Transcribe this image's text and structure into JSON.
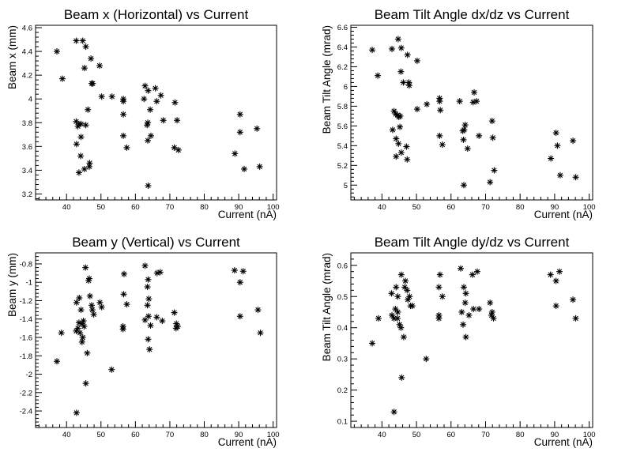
{
  "chart_data": [
    {
      "type": "scatter",
      "title": "Beam x (Horizontal) vs Current",
      "xlabel": "Current (nA)",
      "ylabel": "Beam x (mm)",
      "xlim": [
        31,
        101
      ],
      "ylim": [
        3.15,
        4.62
      ],
      "xticks": [
        40,
        50,
        60,
        70,
        80,
        90,
        100
      ],
      "yticks": [
        3.2,
        3.4,
        3.6,
        3.8,
        4,
        4.2,
        4.4,
        4.6
      ],
      "ytick_labels": [
        "3.2",
        "3.4",
        "3.6",
        "3.8",
        "4",
        "4.2",
        "4.4",
        "4.6"
      ],
      "marker": "asterisk",
      "grid": false,
      "points": [
        [
          37.2,
          4.4
        ],
        [
          38.8,
          4.17
        ],
        [
          42.8,
          4.49
        ],
        [
          44.7,
          4.49
        ],
        [
          45.6,
          4.44
        ],
        [
          45.2,
          4.26
        ],
        [
          47.1,
          4.34
        ],
        [
          47.6,
          4.13
        ],
        [
          47.3,
          4.13
        ],
        [
          49.6,
          4.28
        ],
        [
          50.2,
          4.02
        ],
        [
          53.2,
          4.02
        ],
        [
          46.2,
          3.91
        ],
        [
          42.8,
          3.81
        ],
        [
          43.3,
          3.77
        ],
        [
          43.6,
          3.79
        ],
        [
          44.2,
          3.79
        ],
        [
          45.6,
          3.78
        ],
        [
          44.2,
          3.68
        ],
        [
          42.9,
          3.62
        ],
        [
          44.1,
          3.52
        ],
        [
          43.6,
          3.38
        ],
        [
          45.2,
          3.41
        ],
        [
          46.7,
          3.46
        ],
        [
          46.6,
          3.43
        ],
        [
          56.5,
          4.0
        ],
        [
          56.5,
          3.98
        ],
        [
          56.5,
          3.87
        ],
        [
          56.5,
          3.69
        ],
        [
          57.5,
          3.59
        ],
        [
          62.8,
          4.11
        ],
        [
          63.7,
          4.07
        ],
        [
          62.5,
          4.0
        ],
        [
          64.3,
          3.91
        ],
        [
          63.6,
          3.8
        ],
        [
          63.4,
          3.78
        ],
        [
          65.8,
          4.09
        ],
        [
          66.2,
          3.98
        ],
        [
          67.4,
          4.03
        ],
        [
          68.1,
          3.82
        ],
        [
          64.5,
          3.69
        ],
        [
          63.6,
          3.65
        ],
        [
          63.7,
          3.27
        ],
        [
          71.5,
          3.97
        ],
        [
          72.1,
          3.82
        ],
        [
          71.3,
          3.59
        ],
        [
          72.5,
          3.57
        ],
        [
          88.9,
          3.54
        ],
        [
          90.4,
          3.87
        ],
        [
          90.4,
          3.72
        ],
        [
          91.6,
          3.41
        ],
        [
          95.3,
          3.75
        ],
        [
          96.1,
          3.43
        ]
      ]
    },
    {
      "type": "scatter",
      "title": "Beam Tilt Angle dx/dz vs Current",
      "xlabel": "Current (nA)",
      "ylabel": "Beam Tilt Angle (mrad)",
      "xlim": [
        31,
        101
      ],
      "ylim": [
        4.85,
        6.62
      ],
      "xticks": [
        40,
        50,
        60,
        70,
        80,
        90,
        100
      ],
      "yticks": [
        5,
        5.2,
        5.4,
        5.6,
        5.8,
        6,
        6.2,
        6.4,
        6.6
      ],
      "ytick_labels": [
        "5",
        "5.2",
        "5.4",
        "5.6",
        "5.8",
        "6",
        "6.2",
        "6.4",
        "6.6"
      ],
      "marker": "asterisk",
      "grid": false,
      "points": [
        [
          37.2,
          6.37
        ],
        [
          38.8,
          6.11
        ],
        [
          42.9,
          6.38
        ],
        [
          44.7,
          6.48
        ],
        [
          45.6,
          6.39
        ],
        [
          47.4,
          6.32
        ],
        [
          50.2,
          6.26
        ],
        [
          46.2,
          6.04
        ],
        [
          47.8,
          6.04
        ],
        [
          47.9,
          6.01
        ],
        [
          45.5,
          6.15
        ],
        [
          43.5,
          5.75
        ],
        [
          44.0,
          5.72
        ],
        [
          44.5,
          5.71
        ],
        [
          44.9,
          5.69
        ],
        [
          45.3,
          5.7
        ],
        [
          43.1,
          5.56
        ],
        [
          45.2,
          5.59
        ],
        [
          44.1,
          5.47
        ],
        [
          44.8,
          5.42
        ],
        [
          47.1,
          5.39
        ],
        [
          45.6,
          5.33
        ],
        [
          44.1,
          5.29
        ],
        [
          47.3,
          5.26
        ],
        [
          50.2,
          5.77
        ],
        [
          53.0,
          5.82
        ],
        [
          56.7,
          5.88
        ],
        [
          56.7,
          5.85
        ],
        [
          56.9,
          5.76
        ],
        [
          56.7,
          5.5
        ],
        [
          57.5,
          5.41
        ],
        [
          62.5,
          5.85
        ],
        [
          66.7,
          5.94
        ],
        [
          66.4,
          5.84
        ],
        [
          67.4,
          5.85
        ],
        [
          63.4,
          5.55
        ],
        [
          63.8,
          5.56
        ],
        [
          64.1,
          5.61
        ],
        [
          63.6,
          5.46
        ],
        [
          64.8,
          5.37
        ],
        [
          68.1,
          5.5
        ],
        [
          63.7,
          5.0
        ],
        [
          71.9,
          5.65
        ],
        [
          72.1,
          5.48
        ],
        [
          72.5,
          5.15
        ],
        [
          71.3,
          5.03
        ],
        [
          90.4,
          5.53
        ],
        [
          90.8,
          5.4
        ],
        [
          88.9,
          5.27
        ],
        [
          91.6,
          5.1
        ],
        [
          95.3,
          5.45
        ],
        [
          96.1,
          5.08
        ]
      ]
    },
    {
      "type": "scatter",
      "title": "Beam y (Vertical) vs Current",
      "xlabel": "Current (nA)",
      "ylabel": "Beam y (mm)",
      "xlim": [
        31,
        101
      ],
      "ylim": [
        -2.58,
        -0.68
      ],
      "xticks": [
        40,
        50,
        60,
        70,
        80,
        90,
        100
      ],
      "yticks": [
        -2.4,
        -2.2,
        -2,
        -1.8,
        -1.6,
        -1.4,
        -1.2,
        -1,
        -0.8
      ],
      "ytick_labels": [
        "-2.4",
        "-2.2",
        "-2",
        "-1.8",
        "-1.6",
        "-1.4",
        "-1.2",
        "-1",
        "-0.8"
      ],
      "marker": "asterisk",
      "grid": false,
      "points": [
        [
          37.2,
          -1.86
        ],
        [
          38.5,
          -1.55
        ],
        [
          42.9,
          -1.22
        ],
        [
          43.7,
          -1.17
        ],
        [
          44.2,
          -1.3
        ],
        [
          45.5,
          -0.84
        ],
        [
          46.4,
          -0.98
        ],
        [
          46.6,
          -0.96
        ],
        [
          46.8,
          -1.15
        ],
        [
          43.6,
          -1.44
        ],
        [
          43.3,
          -1.5
        ],
        [
          42.8,
          -1.53
        ],
        [
          43.9,
          -1.55
        ],
        [
          44.5,
          -1.45
        ],
        [
          44.9,
          -1.42
        ],
        [
          45.1,
          -1.48
        ],
        [
          44.7,
          -1.6
        ],
        [
          44.5,
          -1.65
        ],
        [
          46.0,
          -1.77
        ],
        [
          45.6,
          -2.1
        ],
        [
          42.9,
          -2.42
        ],
        [
          47.3,
          -1.25
        ],
        [
          47.5,
          -1.3
        ],
        [
          47.9,
          -1.35
        ],
        [
          49.7,
          -1.22
        ],
        [
          50.2,
          -1.27
        ],
        [
          53.1,
          -1.95
        ],
        [
          56.7,
          -0.91
        ],
        [
          56.6,
          -1.13
        ],
        [
          57.5,
          -1.24
        ],
        [
          56.4,
          -1.48
        ],
        [
          56.4,
          -1.51
        ],
        [
          62.8,
          -0.82
        ],
        [
          63.7,
          -0.97
        ],
        [
          63.5,
          -1.05
        ],
        [
          63.9,
          -1.18
        ],
        [
          63.5,
          -1.25
        ],
        [
          62.8,
          -1.41
        ],
        [
          63.8,
          -1.37
        ],
        [
          64.4,
          -1.47
        ],
        [
          63.7,
          -1.62
        ],
        [
          64.1,
          -1.73
        ],
        [
          66.3,
          -0.9
        ],
        [
          67.2,
          -0.89
        ],
        [
          66.2,
          -1.38
        ],
        [
          67.8,
          -1.42
        ],
        [
          71.3,
          -1.33
        ],
        [
          71.9,
          -1.45
        ],
        [
          72.3,
          -1.48
        ],
        [
          71.8,
          -1.5
        ],
        [
          88.8,
          -0.87
        ],
        [
          90.4,
          -1.0
        ],
        [
          91.3,
          -0.88
        ],
        [
          90.4,
          -1.37
        ],
        [
          95.6,
          -1.3
        ],
        [
          96.3,
          -1.55
        ]
      ]
    },
    {
      "type": "scatter",
      "title": "Beam Tilt Angle dy/dz vs Current",
      "xlabel": "Current (nA)",
      "ylabel": "Beam Tilt Angle (mrad)",
      "xlim": [
        31,
        101
      ],
      "ylim": [
        0.08,
        0.64
      ],
      "xticks": [
        40,
        50,
        60,
        70,
        80,
        90,
        100
      ],
      "yticks": [
        0.1,
        0.2,
        0.3,
        0.4,
        0.5,
        0.6
      ],
      "ytick_labels": [
        "0.1",
        "0.2",
        "0.3",
        "0.4",
        "0.5",
        "0.6"
      ],
      "marker": "asterisk",
      "grid": false,
      "points": [
        [
          37.2,
          0.35
        ],
        [
          39.0,
          0.43
        ],
        [
          42.8,
          0.51
        ],
        [
          44.1,
          0.53
        ],
        [
          44.6,
          0.5
        ],
        [
          45.6,
          0.57
        ],
        [
          46.8,
          0.55
        ],
        [
          46.6,
          0.53
        ],
        [
          47.3,
          0.52
        ],
        [
          42.9,
          0.44
        ],
        [
          43.5,
          0.43
        ],
        [
          43.9,
          0.46
        ],
        [
          44.6,
          0.45
        ],
        [
          44.5,
          0.43
        ],
        [
          45.1,
          0.41
        ],
        [
          45.5,
          0.4
        ],
        [
          46.3,
          0.37
        ],
        [
          47.5,
          0.49
        ],
        [
          48.3,
          0.47
        ],
        [
          48.8,
          0.47
        ],
        [
          48.0,
          0.5
        ],
        [
          45.7,
          0.24
        ],
        [
          43.5,
          0.13
        ],
        [
          52.8,
          0.3
        ],
        [
          56.8,
          0.57
        ],
        [
          56.5,
          0.53
        ],
        [
          57.5,
          0.5
        ],
        [
          56.5,
          0.44
        ],
        [
          56.5,
          0.43
        ],
        [
          62.8,
          0.59
        ],
        [
          63.7,
          0.53
        ],
        [
          64.3,
          0.51
        ],
        [
          64.1,
          0.48
        ],
        [
          63.1,
          0.45
        ],
        [
          65.2,
          0.44
        ],
        [
          63.5,
          0.41
        ],
        [
          64.3,
          0.37
        ],
        [
          66.2,
          0.57
        ],
        [
          67.6,
          0.58
        ],
        [
          66.5,
          0.46
        ],
        [
          68.1,
          0.46
        ],
        [
          71.3,
          0.48
        ],
        [
          71.9,
          0.45
        ],
        [
          72.3,
          0.43
        ],
        [
          71.7,
          0.44
        ],
        [
          88.8,
          0.57
        ],
        [
          90.4,
          0.55
        ],
        [
          91.4,
          0.58
        ],
        [
          90.4,
          0.47
        ],
        [
          95.3,
          0.49
        ],
        [
          96.1,
          0.43
        ]
      ]
    }
  ]
}
